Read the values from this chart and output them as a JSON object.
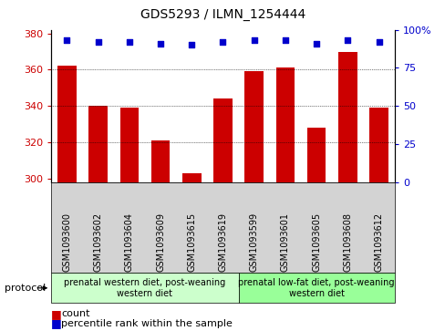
{
  "title": "GDS5293 / ILMN_1254444",
  "samples": [
    "GSM1093600",
    "GSM1093602",
    "GSM1093604",
    "GSM1093609",
    "GSM1093615",
    "GSM1093619",
    "GSM1093599",
    "GSM1093601",
    "GSM1093605",
    "GSM1093608",
    "GSM1093612"
  ],
  "counts": [
    362,
    340,
    339,
    321,
    303,
    344,
    359,
    361,
    328,
    370,
    339
  ],
  "percentiles": [
    93,
    92,
    92,
    91,
    90,
    92,
    93,
    93,
    91,
    93,
    92
  ],
  "ylim_left": [
    298,
    382
  ],
  "ylim_right": [
    0,
    100
  ],
  "yticks_left": [
    300,
    320,
    340,
    360,
    380
  ],
  "yticks_right": [
    0,
    25,
    50,
    75,
    100
  ],
  "bar_color": "#cc0000",
  "dot_color": "#0000cc",
  "grid_color": "#000000",
  "background_color": "#ffffff",
  "group1_label": "prenatal western diet, post-weaning\nwestern diet",
  "group2_label": "prenatal low-fat diet, post-weaning\nwestern diet",
  "group1_color": "#ccffcc",
  "group2_color": "#99ff99",
  "group1_n": 6,
  "group2_n": 5,
  "protocol_label": "protocol",
  "legend_count_label": "count",
  "legend_percentile_label": "percentile rank within the sample",
  "bar_width": 0.6,
  "title_fontsize": 10,
  "axis_fontsize": 8,
  "tick_fontsize": 7,
  "legend_fontsize": 8,
  "group_label_fontsize": 7
}
